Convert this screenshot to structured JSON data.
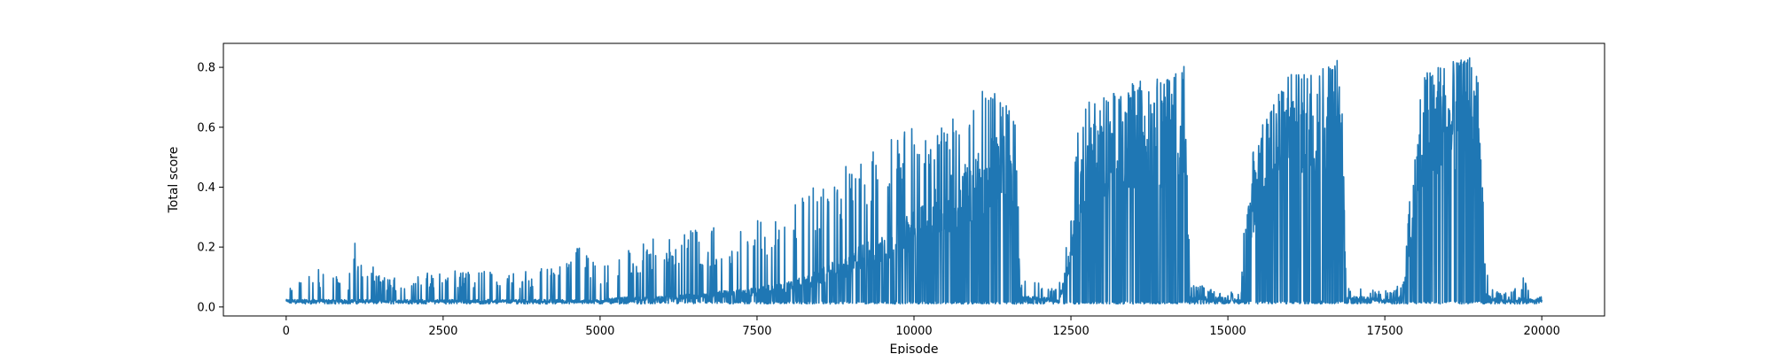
{
  "chart_data": {
    "type": "line",
    "title": "",
    "xlabel": "Episode",
    "ylabel": "Total score",
    "xlim": [
      -1000,
      21000
    ],
    "ylim": [
      -0.03,
      0.88
    ],
    "grid": false,
    "x_ticks": [
      0,
      2500,
      5000,
      7500,
      10000,
      12500,
      15000,
      17500,
      20000
    ],
    "y_ticks": [
      0.0,
      0.2,
      0.4,
      0.6,
      0.8
    ],
    "x_tick_labels": [
      "0",
      "2500",
      "5000",
      "7500",
      "10000",
      "12500",
      "15000",
      "17500",
      "20000"
    ],
    "y_tick_labels": [
      "0.0",
      "0.2",
      "0.4",
      "0.6",
      "0.8"
    ],
    "series_color": "#1f77b4",
    "series": [
      {
        "episodes": [
          0,
          20000
        ],
        "envelope": {
          "x": [
            0,
            250,
            500,
            1000,
            1050,
            1500,
            2000,
            2500,
            3000,
            3500,
            4000,
            4500,
            4700,
            5000,
            5500,
            6000,
            6500,
            7000,
            7500,
            8000,
            8500,
            9000,
            9500,
            10000,
            10500,
            11000,
            11300,
            11600,
            11700,
            12000,
            12300,
            12500,
            12600,
            12800,
            13000,
            13500,
            14000,
            14300,
            14400,
            14800,
            15200,
            15300,
            15500,
            15800,
            16000,
            16500,
            16800,
            16900,
            17200,
            17600,
            17800,
            17900,
            18000,
            18100,
            18300,
            18600,
            18900,
            19000,
            19100,
            19300,
            19500,
            19700,
            19850,
            20000
          ],
          "max": [
            0.05,
            0.11,
            0.13,
            0.1,
            0.23,
            0.1,
            0.11,
            0.12,
            0.13,
            0.12,
            0.13,
            0.15,
            0.24,
            0.14,
            0.2,
            0.24,
            0.26,
            0.28,
            0.3,
            0.34,
            0.42,
            0.48,
            0.55,
            0.64,
            0.6,
            0.72,
            0.74,
            0.7,
            0.1,
            0.08,
            0.06,
            0.36,
            0.6,
            0.73,
            0.7,
            0.76,
            0.78,
            0.81,
            0.08,
            0.06,
            0.05,
            0.47,
            0.6,
            0.72,
            0.78,
            0.8,
            0.83,
            0.08,
            0.07,
            0.05,
            0.1,
            0.4,
            0.55,
            0.78,
            0.8,
            0.82,
            0.84,
            0.8,
            0.12,
            0.05,
            0.05,
            0.1,
            0.04,
            0.09
          ],
          "min": [
            0.01,
            0.01,
            0.01,
            0.01,
            0.01,
            0.01,
            0.01,
            0.01,
            0.01,
            0.01,
            0.01,
            0.01,
            0.01,
            0.01,
            0.01,
            0.01,
            0.01,
            0.01,
            0.01,
            0.01,
            0.01,
            0.01,
            0.01,
            0.01,
            0.01,
            0.01,
            0.01,
            0.01,
            0.01,
            0.01,
            0.01,
            0.01,
            0.01,
            0.01,
            0.01,
            0.01,
            0.01,
            0.01,
            0.01,
            0.01,
            0.01,
            0.01,
            0.01,
            0.01,
            0.01,
            0.01,
            0.01,
            0.01,
            0.01,
            0.01,
            0.01,
            0.01,
            0.01,
            0.01,
            0.01,
            0.01,
            0.01,
            0.01,
            0.01,
            0.01,
            0.01,
            0.01,
            0.01,
            0.01
          ],
          "baseline": [
            0.02,
            0.02,
            0.02,
            0.02,
            0.02,
            0.02,
            0.02,
            0.02,
            0.02,
            0.02,
            0.02,
            0.02,
            0.02,
            0.02,
            0.03,
            0.03,
            0.04,
            0.05,
            0.06,
            0.08,
            0.12,
            0.18,
            0.25,
            0.32,
            0.42,
            0.52,
            0.58,
            0.55,
            0.03,
            0.03,
            0.02,
            0.2,
            0.45,
            0.6,
            0.62,
            0.66,
            0.7,
            0.72,
            0.03,
            0.03,
            0.02,
            0.3,
            0.55,
            0.68,
            0.72,
            0.74,
            0.76,
            0.03,
            0.03,
            0.02,
            0.04,
            0.3,
            0.5,
            0.7,
            0.76,
            0.78,
            0.8,
            0.75,
            0.04,
            0.02,
            0.02,
            0.03,
            0.02,
            0.03
          ]
        }
      }
    ]
  }
}
